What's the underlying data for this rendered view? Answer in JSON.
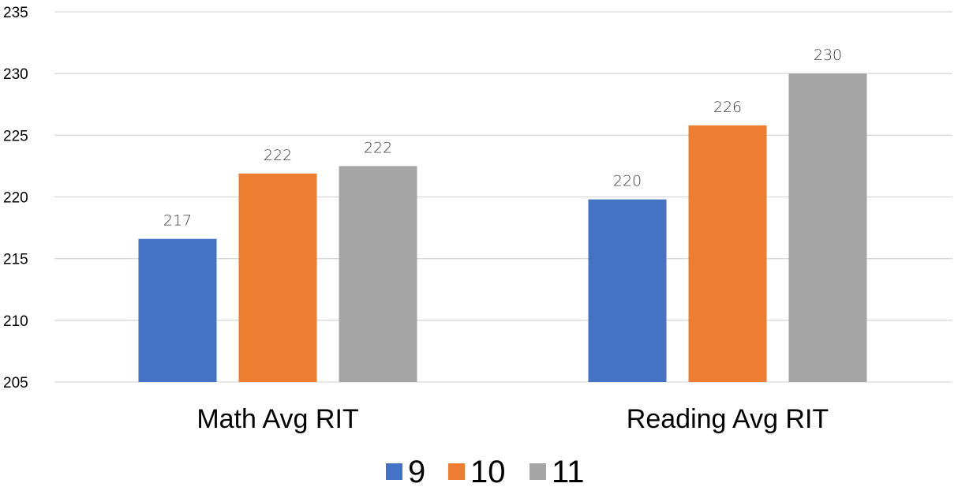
{
  "chart_data": {
    "type": "bar",
    "title": "",
    "xlabel": "",
    "ylabel": "",
    "categories": [
      "Math Avg RIT",
      "Reading Avg RIT"
    ],
    "series": [
      {
        "name": "9",
        "color": "#4472c4",
        "values": [
          216.6,
          219.8
        ],
        "labels": [
          "217",
          "220"
        ]
      },
      {
        "name": "10",
        "color": "#ed7d31",
        "values": [
          221.9,
          225.8
        ],
        "labels": [
          "222",
          "226"
        ]
      },
      {
        "name": "11",
        "color": "#a5a5a5",
        "values": [
          222.5,
          230.0
        ],
        "labels": [
          "222",
          "230"
        ]
      }
    ],
    "ylim": [
      205,
      235
    ],
    "yticks": [
      "205",
      "210",
      "215",
      "220",
      "225",
      "230",
      "235"
    ],
    "grid": true,
    "legend_position": "bottom"
  }
}
